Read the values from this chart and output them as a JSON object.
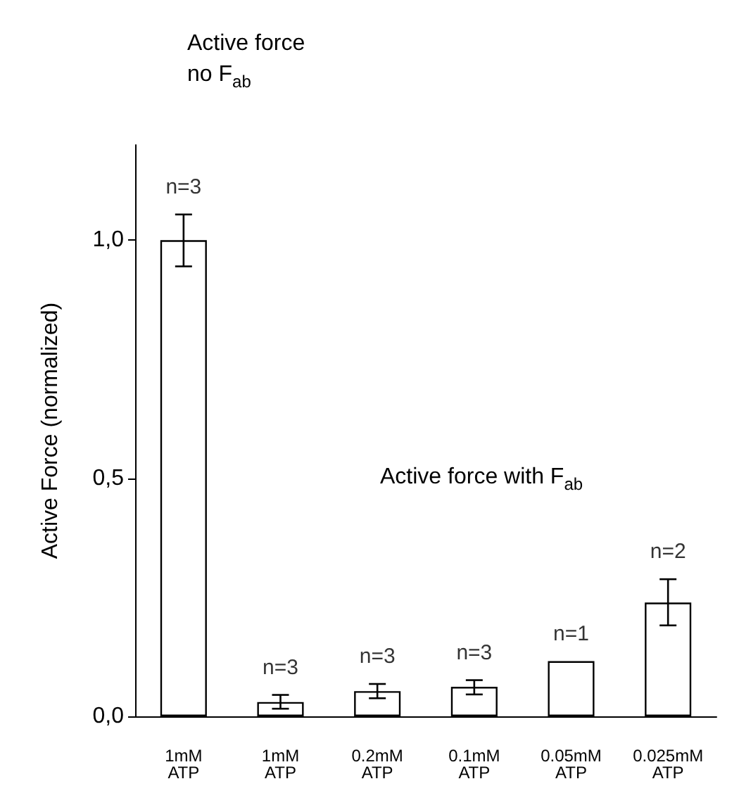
{
  "chart_data": {
    "type": "bar",
    "ylabel": "Active Force (normalized)",
    "annotations": [
      "Active force\nno F$_{ab}$",
      "Active force with F$_{ab}$",
      {
        "text": "n=3",
        "y": 1.054
      },
      {
        "text": "n=3",
        "y": 0.045
      },
      {
        "text": "n=3",
        "y": 0.068
      },
      {
        "text": "n=3",
        "y": 0.076
      },
      {
        "text": "n=1",
        "y": 0.116
      },
      {
        "text": "n=2",
        "y": 0.288
      }
    ],
    "categories": [
      "1mM ATP",
      "1mM ATP",
      "0.2mM ATP",
      "0.1mM ATP",
      "0.05mM ATP",
      "0.025mM ATP"
    ],
    "values": [
      1.0,
      0.03,
      0.053,
      0.062,
      0.116,
      0.239
    ],
    "errors": [
      [
        0.945,
        1.054
      ],
      [
        0.016,
        0.045
      ],
      [
        0.038,
        0.068
      ],
      [
        0.046,
        0.076
      ],
      null,
      [
        0.191,
        0.288
      ]
    ],
    "color": "#ffffff",
    "ylim": [
      0,
      1.2
    ],
    "yticks": [
      {
        "value": 0,
        "label": "0,0"
      },
      {
        "value": 0.5,
        "label": "0,5"
      },
      {
        "value": 1,
        "label": "1,0"
      }
    ],
    "grid": false
  }
}
